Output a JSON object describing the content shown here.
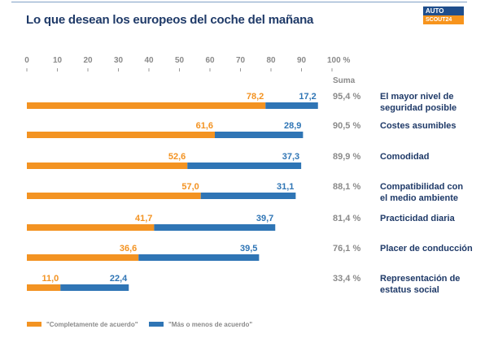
{
  "title": "Lo que desean los europeos del coche del mañana",
  "logo": {
    "line1": "AUTO",
    "line2": "SCOUT24"
  },
  "colors": {
    "orange": "#f39322",
    "blue": "#2f75b5",
    "grey": "#8a8a8a",
    "navy": "#1f3a68"
  },
  "chart_data": {
    "type": "bar",
    "orientation": "horizontal",
    "stacked": true,
    "title": "Lo que desean los europeos del coche del mañana",
    "xlim": [
      0,
      100
    ],
    "ticks": [
      "0",
      "10",
      "20",
      "30",
      "40",
      "50",
      "60",
      "70",
      "80",
      "90",
      "100 %"
    ],
    "tick_values": [
      0,
      10,
      20,
      30,
      40,
      50,
      60,
      70,
      80,
      90,
      100
    ],
    "sum_label": "Suma",
    "categories": [
      [
        "El mayor nivel de",
        "seguridad posible"
      ],
      [
        "Costes asumibles"
      ],
      [
        "Comodidad"
      ],
      [
        "Compatibilidad con",
        "el medio ambiente"
      ],
      [
        "Practicidad diaria"
      ],
      [
        "Placer de conducción"
      ],
      [
        "Representación de",
        "estatus social"
      ]
    ],
    "series": [
      {
        "name": "\"Completamente de acuerdo\"",
        "color": "#f39322",
        "values": [
          78.2,
          61.6,
          52.6,
          57.0,
          41.7,
          36.6,
          11.0
        ],
        "labels": [
          "78,2",
          "61,6",
          "52,6",
          "57,0",
          "41,7",
          "36,6",
          "11,0"
        ]
      },
      {
        "name": "\"Más o menos de acuerdo\"",
        "color": "#2f75b5",
        "values": [
          17.2,
          28.9,
          37.3,
          31.1,
          39.7,
          39.5,
          22.4
        ],
        "labels": [
          "17,2",
          "28,9",
          "37,3",
          "31,1",
          "39,7",
          "39,5",
          "22,4"
        ]
      }
    ],
    "sums": [
      "95,4 %",
      "90,5 %",
      "89,9 %",
      "88,1 %",
      "81,4 %",
      "76,1 %",
      "33,4 %"
    ],
    "legend": [
      "\"Completamente de acuerdo\"",
      "\"Más o menos de acuerdo\""
    ]
  }
}
